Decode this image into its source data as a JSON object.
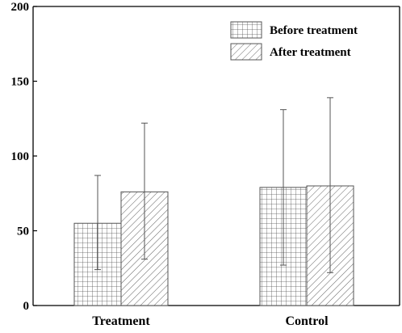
{
  "chart_data": {
    "type": "bar",
    "categories": [
      "Treatment",
      "Control"
    ],
    "series": [
      {
        "name": "Before treatment",
        "values": [
          55,
          79
        ],
        "error_low": [
          24,
          27
        ],
        "error_high": [
          87,
          131
        ],
        "pattern": "grid"
      },
      {
        "name": "After treatment",
        "values": [
          76,
          80
        ],
        "error_low": [
          31,
          22
        ],
        "error_high": [
          122,
          139
        ],
        "pattern": "hatch"
      }
    ],
    "title": "",
    "xlabel": "",
    "ylabel": "",
    "ylim": [
      0,
      200
    ],
    "yticks": [
      0,
      50,
      100,
      150,
      200
    ],
    "grid": false,
    "legend_position": "top-right",
    "colors": {
      "bar_stroke": "#555555",
      "axis": "#000000",
      "error_bar": "#555555"
    }
  }
}
